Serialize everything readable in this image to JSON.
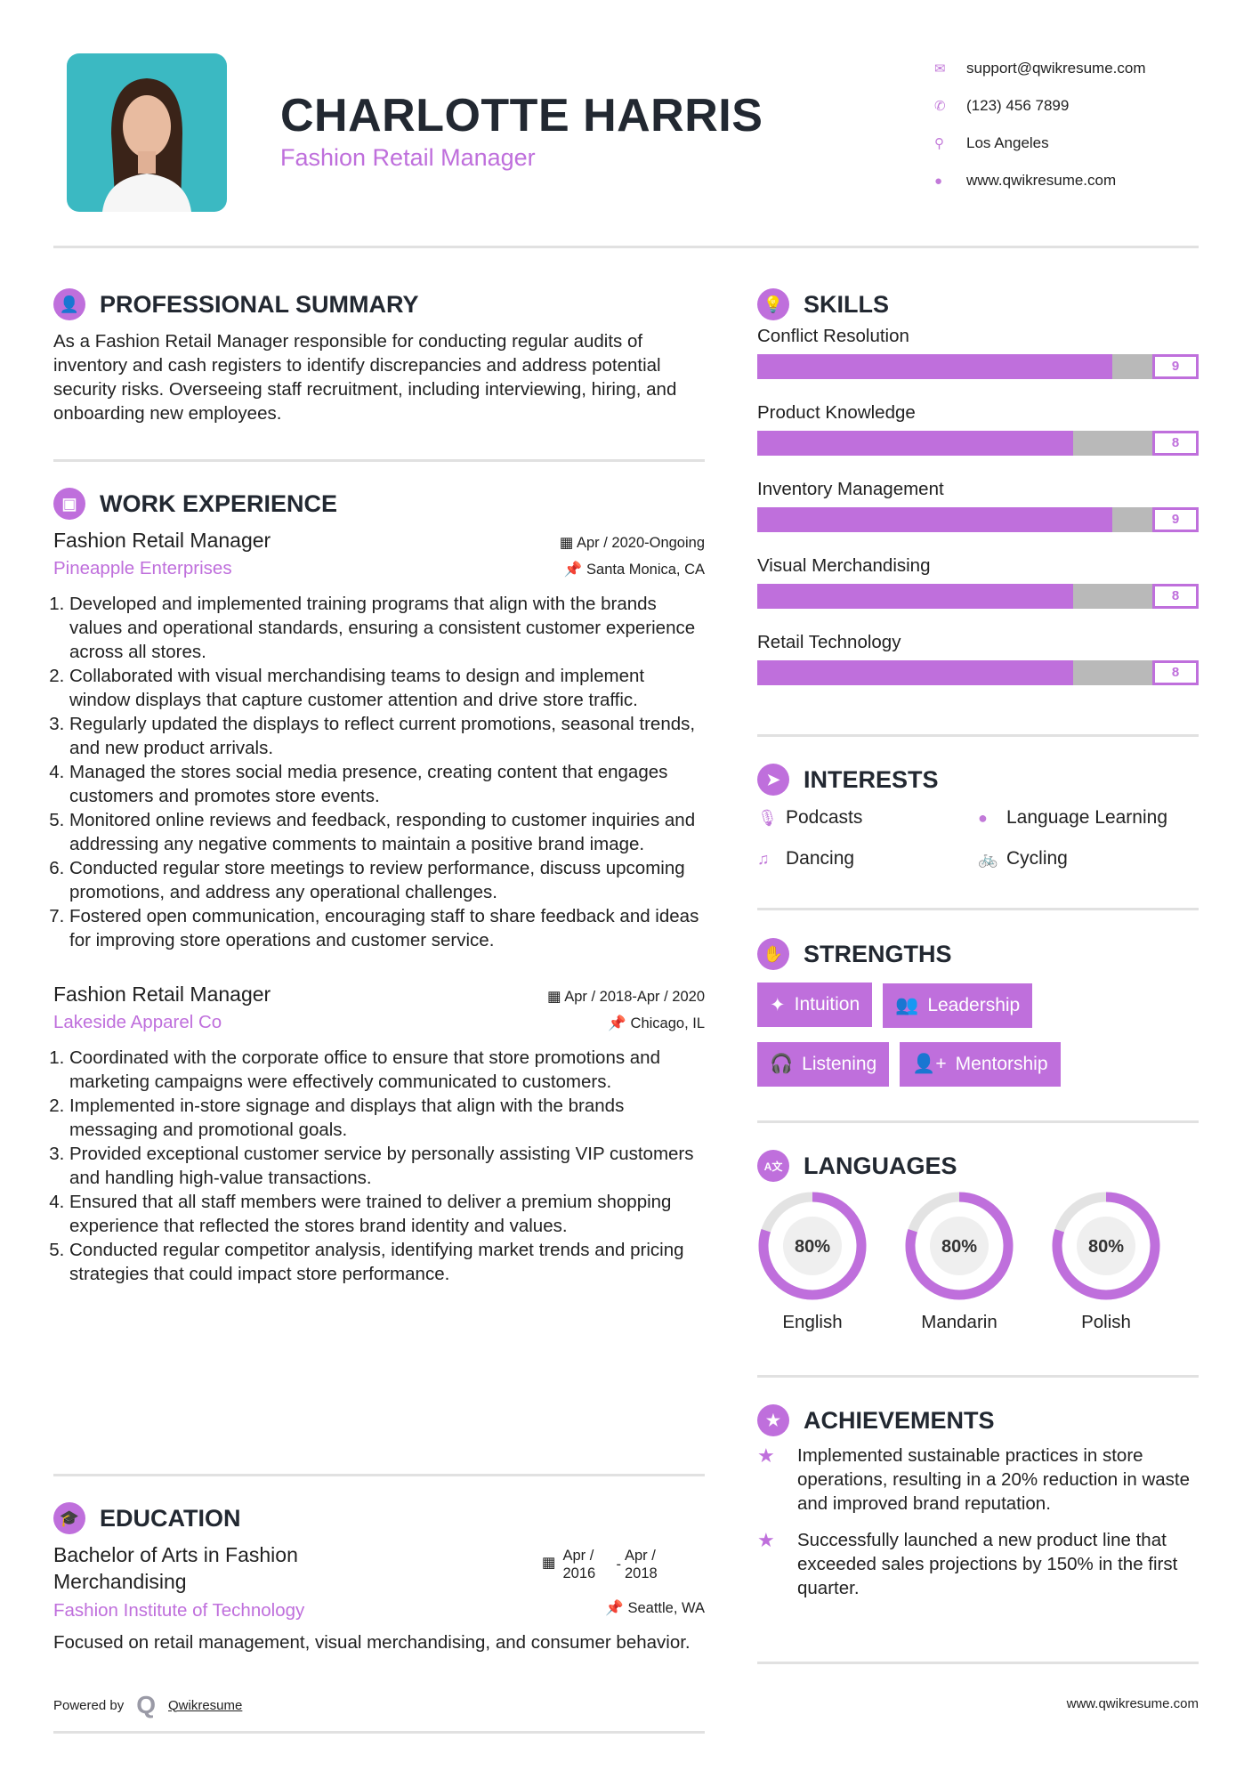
{
  "header": {
    "name": "CHARLOTTE HARRIS",
    "title": "Fashion Retail Manager",
    "contacts": [
      {
        "icon": "envelope-icon",
        "text": "support@qwikresume.com"
      },
      {
        "icon": "phone-icon",
        "text": "(123) 456 7899"
      },
      {
        "icon": "map-pin-icon",
        "text": "Los Angeles"
      },
      {
        "icon": "globe-icon",
        "text": "www.qwikresume.com"
      }
    ]
  },
  "accent": "#bf6fdc",
  "summary": {
    "heading": "PROFESSIONAL SUMMARY",
    "text": "As a Fashion Retail Manager responsible for conducting regular audits of inventory and cash registers to identify discrepancies and address potential security risks. Overseeing staff recruitment, including interviewing, hiring, and onboarding new employees."
  },
  "experience": {
    "heading": "WORK EXPERIENCE",
    "jobs": [
      {
        "title": "Fashion Retail Manager",
        "company": "Pineapple Enterprises",
        "dates": "Apr / 2020-Ongoing",
        "location": "Santa Monica, CA",
        "items": [
          "Developed and implemented training programs that align with the brands values and operational standards, ensuring a consistent customer experience across all stores.",
          "Collaborated with visual merchandising teams to design and implement window displays that capture customer attention and drive store traffic.",
          "Regularly updated the displays to reflect current promotions, seasonal trends, and new product arrivals.",
          "Managed the stores social media presence, creating content that engages customers and promotes store events.",
          "Monitored online reviews and feedback, responding to customer inquiries and addressing any negative comments to maintain a positive brand image.",
          "Conducted regular store meetings to review performance, discuss upcoming promotions, and address any operational challenges.",
          "Fostered open communication, encouraging staff to share feedback and ideas for improving store operations and customer service."
        ]
      },
      {
        "title": "Fashion Retail Manager",
        "company": "Lakeside Apparel Co",
        "dates": "Apr / 2018-Apr / 2020",
        "location": "Chicago, IL",
        "items": [
          "Coordinated with the corporate office to ensure that store promotions and marketing campaigns were effectively communicated to customers.",
          "Implemented in-store signage and displays that align with the brands messaging and promotional goals.",
          "Provided exceptional customer service by personally assisting VIP customers and handling high-value transactions.",
          "Ensured that all staff members were trained to deliver a premium shopping experience that reflected the stores brand identity and values.",
          "Conducted regular competitor analysis, identifying market trends and pricing strategies that could impact store performance."
        ]
      }
    ]
  },
  "education": {
    "heading": "EDUCATION",
    "degree": "Bachelor of Arts in Fashion Merchandising",
    "school": "Fashion Institute of Technology",
    "start": "Apr / 2016",
    "end": "Apr / 2018",
    "separator": "-",
    "location": "Seattle, WA",
    "text": "Focused on retail management, visual merchandising, and consumer behavior."
  },
  "skills": {
    "heading": "SKILLS",
    "items": [
      {
        "name": "Conflict Resolution",
        "level": 9
      },
      {
        "name": "Product Knowledge",
        "level": 8
      },
      {
        "name": "Inventory Management",
        "level": 9
      },
      {
        "name": "Visual Merchandising",
        "level": 8
      },
      {
        "name": "Retail Technology",
        "level": 8
      }
    ],
    "max": 10
  },
  "interests": {
    "heading": "INTERESTS",
    "items": [
      {
        "icon": "microphone-icon",
        "label": "Podcasts"
      },
      {
        "icon": "globe-icon",
        "label": "Language Learning"
      },
      {
        "icon": "music-note-icon",
        "label": "Dancing"
      },
      {
        "icon": "bicycle-icon",
        "label": "Cycling"
      }
    ]
  },
  "strengths": {
    "heading": "STRENGTHS",
    "items": [
      {
        "icon": "magic-wand-icon",
        "label": "Intuition"
      },
      {
        "icon": "users-icon",
        "label": "Leadership"
      },
      {
        "icon": "headphones-icon",
        "label": "Listening"
      },
      {
        "icon": "user-plus-icon",
        "label": "Mentorship"
      }
    ]
  },
  "languages": {
    "heading": "LANGUAGES",
    "items": [
      {
        "name": "English",
        "percent": 80,
        "label": "80%"
      },
      {
        "name": "Mandarin",
        "percent": 80,
        "label": "80%"
      },
      {
        "name": "Polish",
        "percent": 80,
        "label": "80%"
      }
    ]
  },
  "achievements": {
    "heading": "ACHIEVEMENTS",
    "items": [
      "Implemented sustainable practices in store operations, resulting in a 20% reduction in waste and improved brand reputation.",
      "Successfully launched a new product line that exceeded sales projections by 150% in the first quarter."
    ]
  },
  "footer": {
    "powered": "Powered by",
    "brand": "Qwikresume",
    "url": "www.qwikresume.com"
  }
}
